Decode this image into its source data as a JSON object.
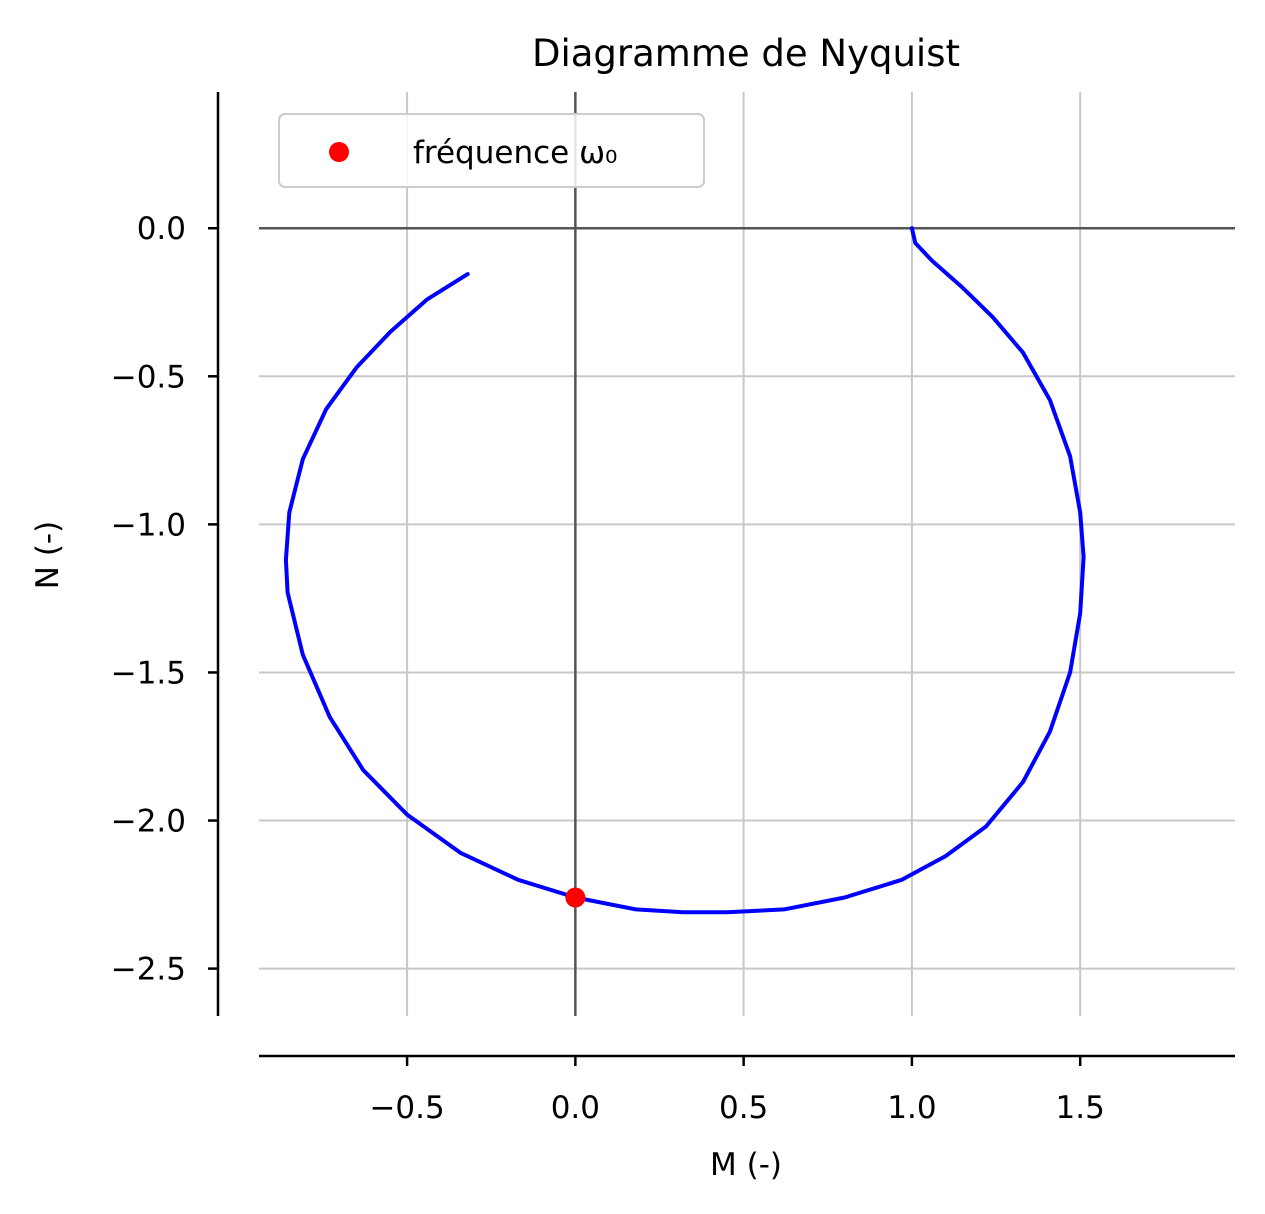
{
  "chart_data": {
    "type": "line",
    "title": "Diagramme de Nyquist",
    "xlabel": "M (-)",
    "ylabel": "N (-)",
    "xlim": [
      -0.94,
      1.96
    ],
    "ylim": [
      -2.66,
      0.46
    ],
    "x_ticks": [
      -0.5,
      0.0,
      0.5,
      1.0,
      1.5
    ],
    "x_tick_labels": [
      "−0.5",
      "0.0",
      "0.5",
      "1.0",
      "1.5"
    ],
    "y_ticks": [
      0.0,
      -0.5,
      -1.0,
      -1.5,
      -2.0,
      -2.5
    ],
    "y_tick_labels": [
      "0.0",
      "−0.5",
      "−1.0",
      "−1.5",
      "−2.0",
      "−2.5"
    ],
    "grid": true,
    "legend_position": "top-left",
    "series": [
      {
        "color": "#0000ff",
        "points": [
          [
            1.0,
            0.0
          ],
          [
            1.01,
            -0.05
          ],
          [
            1.06,
            -0.11
          ],
          [
            1.15,
            -0.2
          ],
          [
            1.24,
            -0.3
          ],
          [
            1.33,
            -0.42
          ],
          [
            1.41,
            -0.58
          ],
          [
            1.47,
            -0.77
          ],
          [
            1.5,
            -0.96
          ],
          [
            1.51,
            -1.11
          ],
          [
            1.5,
            -1.3
          ],
          [
            1.47,
            -1.5
          ],
          [
            1.41,
            -1.7
          ],
          [
            1.33,
            -1.87
          ],
          [
            1.22,
            -2.02
          ],
          [
            1.1,
            -2.12
          ],
          [
            0.97,
            -2.2
          ],
          [
            0.8,
            -2.26
          ],
          [
            0.62,
            -2.3
          ],
          [
            0.45,
            -2.31
          ],
          [
            0.32,
            -2.31
          ],
          [
            0.18,
            -2.3
          ],
          [
            0.0,
            -2.26
          ],
          [
            -0.17,
            -2.2
          ],
          [
            -0.34,
            -2.11
          ],
          [
            -0.5,
            -1.98
          ],
          [
            -0.63,
            -1.83
          ],
          [
            -0.73,
            -1.65
          ],
          [
            -0.81,
            -1.44
          ],
          [
            -0.855,
            -1.23
          ],
          [
            -0.86,
            -1.12
          ],
          [
            -0.85,
            -0.96
          ],
          [
            -0.81,
            -0.78
          ],
          [
            -0.74,
            -0.61
          ],
          [
            -0.65,
            -0.47
          ],
          [
            -0.55,
            -0.35
          ],
          [
            -0.44,
            -0.24
          ],
          [
            -0.32,
            -0.155
          ]
        ]
      }
    ],
    "markers": [
      {
        "label": "fréquence ω₀",
        "x": 0.0,
        "y": -2.26,
        "color": "#ff0000"
      }
    ],
    "reference_lines": {
      "x": 0.0,
      "y": 0.0,
      "color": "#555555"
    }
  }
}
